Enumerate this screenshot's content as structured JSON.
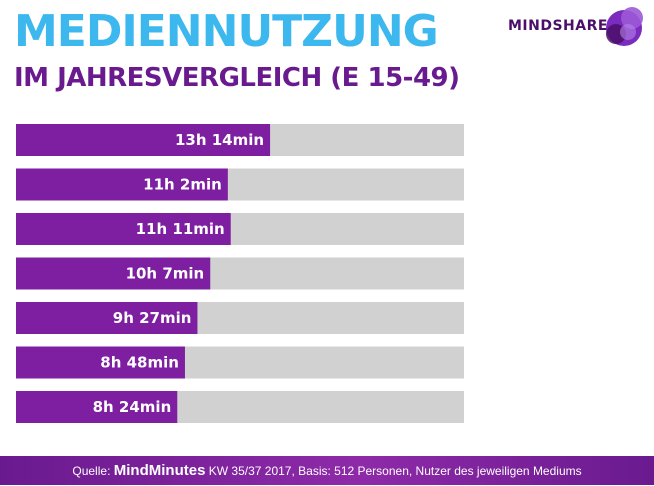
{
  "header": {
    "title": "MEDIENNUTZUNG",
    "subtitle": "IM JAHRESVERGLEICH (E 15-49)",
    "logo_text": "MINDSHARE"
  },
  "footer": {
    "source_prefix": "Quelle:",
    "source_brand": "MindMinutes",
    "source_details": "KW 35/37 2017, Basis: 512 Personen, Nutzer des jeweiligen Mediums"
  },
  "colors": {
    "title": "#3cb8ef",
    "subtitle": "#6a1a8f",
    "bar_fill": "#7d1fa0",
    "bar_track": "#d1d1d1"
  },
  "chart_data": {
    "type": "bar",
    "orientation": "horizontal",
    "title": "",
    "xlabel": "",
    "ylabel": "",
    "unit": "minutes",
    "xlim": [
      0,
      1400
    ],
    "data_labels": [
      "13h 14min",
      "11h 2min",
      "11h 11min",
      "10h 7min",
      "9h 27min",
      "8h 48min",
      "8h 24min"
    ],
    "values": [
      794,
      662,
      671,
      607,
      567,
      528,
      504
    ],
    "grid": false,
    "legend": "none"
  }
}
